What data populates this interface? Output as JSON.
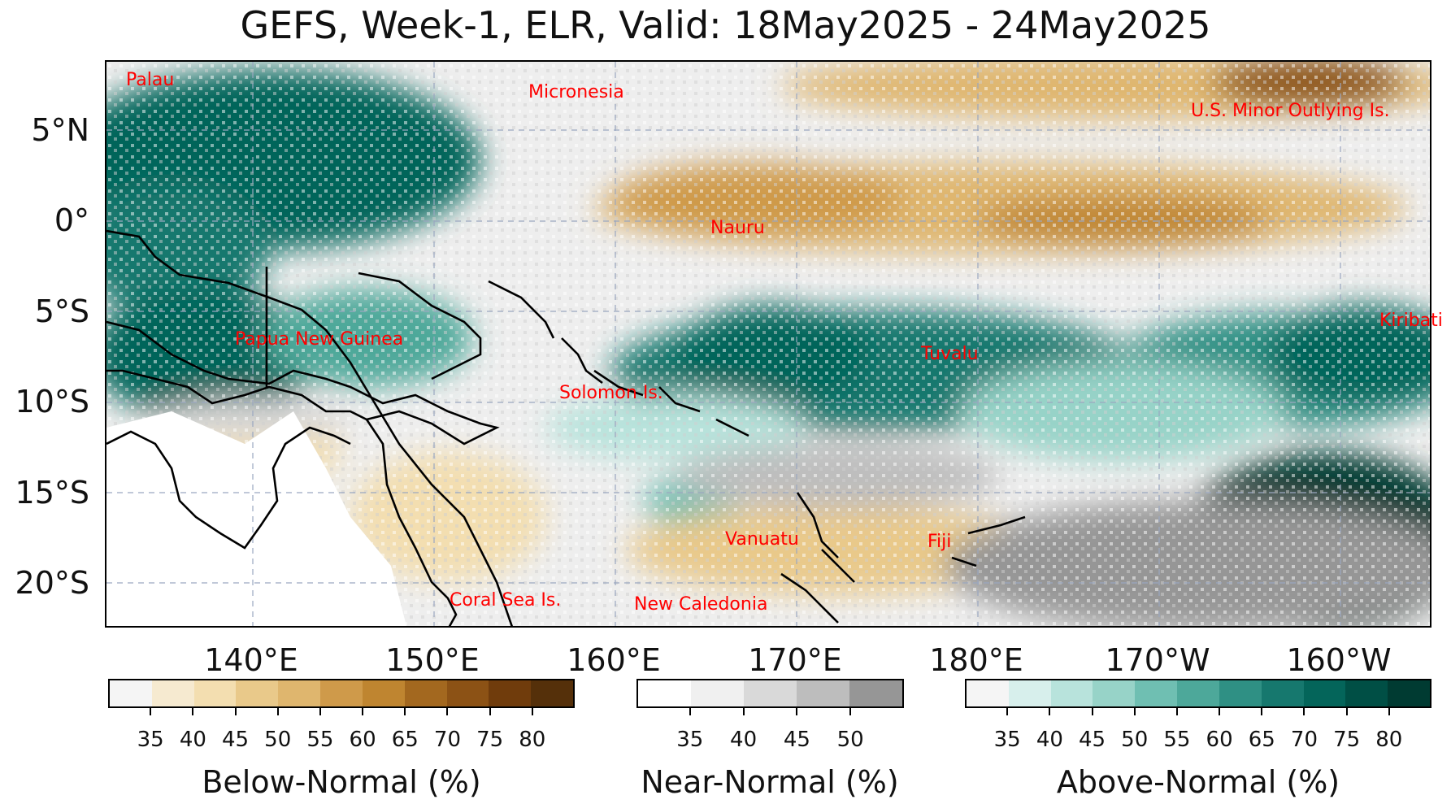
{
  "title": "GEFS, Week-1, ELR, Valid: 18May2025 - 24May2025",
  "lat_labels": [
    "5°N",
    "0°",
    "5°S",
    "10°S",
    "15°S",
    "20°S"
  ],
  "lon_labels": [
    "140°E",
    "150°E",
    "160°E",
    "170°E",
    "180°E",
    "170°W",
    "160°W"
  ],
  "places": [
    "Palau",
    "Micronesia",
    "U.S. Minor Outlying Is.",
    "Nauru",
    "Papua New Guinea",
    "Tuvalu",
    "Kiribati",
    "Solomon Is.",
    "Vanuatu",
    "Fiji",
    "Coral Sea Is.",
    "New Caledonia"
  ],
  "colorbars": [
    {
      "title": "Below-Normal (%)",
      "ticks": [
        "35",
        "40",
        "45",
        "50",
        "55",
        "60",
        "65",
        "70",
        "75",
        "80"
      ],
      "colors": [
        "#f5f5f5",
        "#f6ead0",
        "#f3deb0",
        "#e9c98a",
        "#dfb66e",
        "#cf9a4a",
        "#bf8530",
        "#a3681f",
        "#8c5215",
        "#703c0c",
        "#55300a"
      ]
    },
    {
      "title": "Near-Normal (%)",
      "ticks": [
        "35",
        "40",
        "45",
        "50"
      ],
      "colors": [
        "#ffffff",
        "#f0f0f0",
        "#d9d9d9",
        "#bdbdbd",
        "#969696"
      ]
    },
    {
      "title": "Above-Normal (%)",
      "ticks": [
        "35",
        "40",
        "45",
        "50",
        "55",
        "60",
        "65",
        "70",
        "75",
        "80"
      ],
      "colors": [
        "#f5f5f5",
        "#d7efec",
        "#b8e3dc",
        "#97d3c8",
        "#6fbfb2",
        "#4da89a",
        "#2f9084",
        "#16786e",
        "#04655a",
        "#004f45",
        "#003b32"
      ]
    }
  ]
}
